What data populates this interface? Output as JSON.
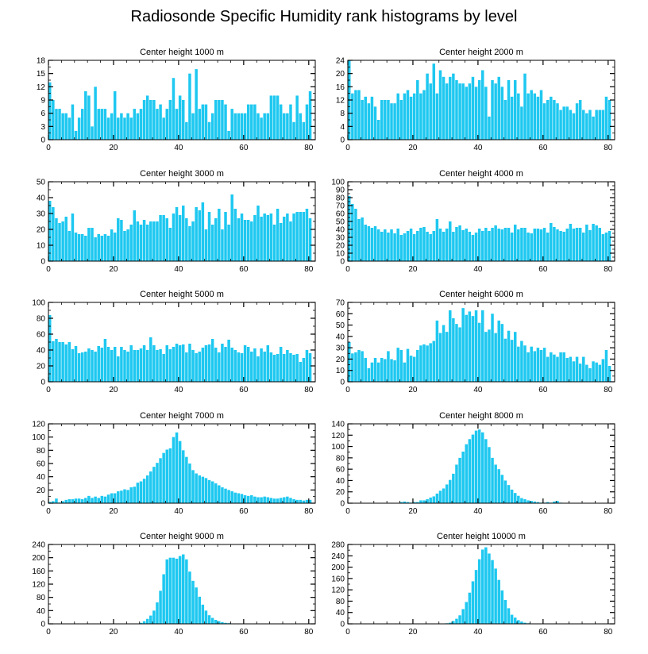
{
  "figure": {
    "title": "Radiosonde Specific Humidity rank histograms by level"
  },
  "colors": {
    "bar": "#1ec8f0",
    "bar_edge": "#ffffff",
    "axis": "#000000"
  },
  "chart_data": [
    {
      "type": "bar",
      "title": "Center height 1000 m",
      "xlim": [
        0,
        82
      ],
      "ylim": [
        0,
        18
      ],
      "xticks": [
        0,
        20,
        40,
        60,
        80
      ],
      "yticks": [
        0,
        3,
        6,
        9,
        12,
        15,
        18
      ],
      "values": [
        13,
        9,
        7,
        7,
        6,
        6,
        5,
        8,
        2,
        5,
        7,
        11,
        10,
        3,
        12,
        7,
        7,
        7,
        5,
        6,
        11,
        5,
        6,
        5,
        6,
        5,
        7,
        6,
        7,
        9,
        10,
        9,
        9,
        7,
        8,
        5,
        7,
        9,
        14,
        7,
        10,
        9,
        4,
        15,
        6,
        16,
        7,
        8,
        8,
        4,
        6,
        9,
        9,
        9,
        8,
        2,
        7,
        6,
        6,
        6,
        6,
        8,
        8,
        8,
        6,
        5,
        6,
        6,
        10,
        10,
        10,
        8,
        6,
        6,
        8,
        4,
        10,
        6,
        4,
        8,
        11
      ]
    },
    {
      "type": "bar",
      "title": "Center height 2000 m",
      "xlim": [
        0,
        82
      ],
      "ylim": [
        0,
        24
      ],
      "xticks": [
        0,
        20,
        40,
        60,
        80
      ],
      "yticks": [
        0,
        4,
        8,
        12,
        16,
        20,
        24
      ],
      "values": [
        24,
        14,
        15,
        15,
        12,
        13,
        11,
        13,
        10,
        6,
        12,
        12,
        12,
        11,
        11,
        14,
        12,
        14,
        15,
        13,
        14,
        18,
        14,
        15,
        20,
        17,
        23,
        14,
        21,
        19,
        17,
        19,
        20,
        18,
        17,
        17,
        16,
        17,
        19,
        16,
        18,
        21,
        16,
        7,
        18,
        17,
        19,
        16,
        12,
        18,
        13,
        18,
        14,
        10,
        20,
        14,
        15,
        14,
        13,
        15,
        11,
        12,
        13,
        12,
        11,
        9,
        10,
        10,
        9,
        8,
        11,
        12,
        9,
        8,
        9,
        7,
        9,
        9,
        9,
        13,
        12
      ]
    },
    {
      "type": "bar",
      "title": "Center height 3000 m",
      "xlim": [
        0,
        82
      ],
      "ylim": [
        0,
        50
      ],
      "xticks": [
        0,
        20,
        40,
        60,
        80
      ],
      "yticks": [
        0,
        10,
        20,
        30,
        40,
        50
      ],
      "values": [
        38,
        34,
        27,
        24,
        25,
        28,
        19,
        30,
        18,
        17,
        17,
        16,
        21,
        21,
        15,
        17,
        16,
        17,
        16,
        20,
        18,
        27,
        26,
        19,
        20,
        23,
        32,
        25,
        23,
        26,
        23,
        25,
        25,
        25,
        29,
        29,
        27,
        21,
        30,
        34,
        29,
        35,
        27,
        22,
        25,
        34,
        32,
        37,
        20,
        31,
        23,
        27,
        33,
        20,
        31,
        23,
        42,
        33,
        27,
        30,
        26,
        26,
        25,
        29,
        35,
        28,
        30,
        29,
        30,
        23,
        33,
        24,
        28,
        30,
        25,
        30,
        31,
        31,
        31,
        33,
        27
      ]
    },
    {
      "type": "bar",
      "title": "Center height 4000 m",
      "xlim": [
        0,
        82
      ],
      "ylim": [
        0,
        100
      ],
      "xticks": [
        0,
        20,
        40,
        60,
        80
      ],
      "yticks": [
        0,
        10,
        20,
        30,
        40,
        50,
        60,
        70,
        80,
        90,
        100
      ],
      "values": [
        82,
        72,
        66,
        53,
        55,
        46,
        44,
        42,
        44,
        40,
        37,
        40,
        36,
        40,
        35,
        41,
        33,
        35,
        38,
        41,
        34,
        38,
        42,
        43,
        37,
        34,
        38,
        53,
        41,
        37,
        41,
        50,
        37,
        43,
        45,
        39,
        41,
        37,
        33,
        36,
        41,
        38,
        42,
        38,
        42,
        45,
        41,
        40,
        42,
        42,
        36,
        46,
        40,
        42,
        42,
        36,
        35,
        41,
        41,
        40,
        42,
        36,
        48,
        43,
        40,
        38,
        37,
        41,
        47,
        41,
        42,
        42,
        36,
        46,
        39,
        47,
        45,
        42,
        34,
        36,
        38
      ]
    },
    {
      "type": "bar",
      "title": "Center height 5000 m",
      "xlim": [
        0,
        82
      ],
      "ylim": [
        0,
        100
      ],
      "xticks": [
        0,
        20,
        40,
        60,
        80
      ],
      "yticks": [
        0,
        20,
        40,
        60,
        80,
        100
      ],
      "values": [
        84,
        51,
        54,
        50,
        50,
        47,
        50,
        41,
        45,
        36,
        37,
        38,
        42,
        40,
        38,
        45,
        43,
        54,
        44,
        40,
        44,
        32,
        44,
        40,
        38,
        46,
        40,
        40,
        42,
        46,
        40,
        56,
        46,
        40,
        41,
        35,
        46,
        41,
        44,
        48,
        46,
        47,
        37,
        48,
        40,
        36,
        38,
        43,
        46,
        47,
        54,
        43,
        37,
        48,
        44,
        53,
        43,
        40,
        37,
        36,
        46,
        44,
        38,
        42,
        32,
        42,
        38,
        46,
        37,
        34,
        35,
        44,
        35,
        40,
        36,
        34,
        35,
        25,
        30,
        40,
        36
      ]
    },
    {
      "type": "bar",
      "title": "Center height 6000 m",
      "xlim": [
        0,
        82
      ],
      "ylim": [
        0,
        70
      ],
      "xticks": [
        0,
        20,
        40,
        60,
        80
      ],
      "yticks": [
        0,
        10,
        20,
        30,
        40,
        50,
        60,
        70
      ],
      "values": [
        35,
        25,
        26,
        28,
        27,
        21,
        12,
        17,
        21,
        17,
        21,
        20,
        27,
        20,
        19,
        30,
        28,
        17,
        29,
        23,
        22,
        28,
        32,
        33,
        32,
        34,
        36,
        54,
        43,
        50,
        44,
        63,
        56,
        51,
        48,
        65,
        59,
        62,
        58,
        63,
        52,
        63,
        44,
        46,
        60,
        43,
        54,
        51,
        38,
        45,
        37,
        44,
        31,
        36,
        32,
        26,
        31,
        27,
        30,
        28,
        30,
        22,
        26,
        24,
        22,
        26,
        26,
        21,
        22,
        18,
        22,
        16,
        22,
        15,
        12,
        18,
        17,
        15,
        20,
        28,
        14
      ]
    },
    {
      "type": "bar",
      "title": "Center height 7000 m",
      "xlim": [
        0,
        82
      ],
      "ylim": [
        0,
        120
      ],
      "xticks": [
        0,
        20,
        40,
        60,
        80
      ],
      "yticks": [
        0,
        20,
        40,
        60,
        80,
        100,
        120
      ],
      "values": [
        2,
        3,
        7,
        1,
        3,
        5,
        6,
        6,
        7,
        7,
        6,
        8,
        11,
        8,
        10,
        8,
        11,
        10,
        13,
        15,
        15,
        18,
        19,
        21,
        20,
        24,
        25,
        31,
        33,
        37,
        42,
        48,
        55,
        61,
        68,
        76,
        81,
        83,
        100,
        107,
        94,
        80,
        70,
        60,
        50,
        45,
        42,
        40,
        38,
        35,
        33,
        30,
        27,
        24,
        22,
        20,
        18,
        16,
        15,
        14,
        12,
        11,
        12,
        10,
        9,
        9,
        10,
        9,
        8,
        7,
        7,
        8,
        9,
        10,
        8,
        6,
        5,
        5,
        4,
        5,
        5
      ]
    },
    {
      "type": "bar",
      "title": "Center height 8000 m",
      "xlim": [
        0,
        82
      ],
      "ylim": [
        0,
        140
      ],
      "xticks": [
        0,
        20,
        40,
        60,
        80
      ],
      "yticks": [
        0,
        20,
        40,
        60,
        80,
        100,
        120,
        140
      ],
      "values": [
        0,
        0,
        0,
        0,
        0,
        0,
        0,
        0,
        0,
        0,
        0,
        0,
        0,
        0,
        0,
        0,
        2,
        3,
        2,
        1,
        2,
        2,
        5,
        5,
        7,
        10,
        12,
        17,
        22,
        26,
        33,
        41,
        52,
        68,
        80,
        91,
        104,
        113,
        121,
        128,
        130,
        125,
        113,
        99,
        80,
        68,
        60,
        50,
        40,
        32,
        24,
        18,
        13,
        9,
        7,
        5,
        4,
        3,
        2,
        1,
        1,
        2,
        1,
        3,
        4,
        1,
        0,
        0,
        0,
        0,
        0,
        0,
        0,
        0,
        0,
        0,
        0,
        0,
        0,
        0,
        0
      ]
    },
    {
      "type": "bar",
      "title": "Center height 9000 m",
      "xlim": [
        0,
        82
      ],
      "ylim": [
        0,
        240
      ],
      "xticks": [
        0,
        20,
        40,
        60,
        80
      ],
      "yticks": [
        0,
        40,
        80,
        120,
        160,
        200,
        240
      ],
      "values": [
        0,
        0,
        0,
        0,
        0,
        0,
        0,
        0,
        0,
        0,
        0,
        0,
        0,
        0,
        0,
        0,
        0,
        0,
        0,
        0,
        0,
        0,
        0,
        0,
        0,
        0,
        0,
        0,
        3,
        8,
        15,
        25,
        40,
        65,
        100,
        150,
        195,
        200,
        200,
        197,
        205,
        210,
        195,
        158,
        130,
        110,
        82,
        58,
        40,
        26,
        18,
        12,
        8,
        5,
        3,
        2,
        1,
        0,
        0,
        0,
        0,
        0,
        0,
        0,
        0,
        0,
        0,
        0,
        0,
        0,
        0,
        0,
        0,
        0,
        0,
        0,
        0,
        0,
        0,
        0,
        0
      ]
    },
    {
      "type": "bar",
      "title": "Center height 10000 m",
      "xlim": [
        0,
        82
      ],
      "ylim": [
        0,
        280
      ],
      "xticks": [
        0,
        20,
        40,
        60,
        80
      ],
      "yticks": [
        0,
        40,
        80,
        120,
        160,
        200,
        240,
        280
      ],
      "yticklabels": [
        0,
        40,
        80,
        120,
        160,
        200,
        240,
        280
      ],
      "values": [
        0,
        0,
        0,
        0,
        0,
        0,
        0,
        0,
        0,
        0,
        0,
        0,
        0,
        0,
        0,
        0,
        0,
        0,
        0,
        0,
        0,
        0,
        0,
        0,
        0,
        0,
        0,
        0,
        0,
        1,
        2,
        4,
        10,
        18,
        30,
        52,
        77,
        110,
        150,
        190,
        228,
        262,
        270,
        248,
        225,
        195,
        155,
        118,
        84,
        55,
        32,
        22,
        13,
        8,
        4,
        2,
        1,
        0,
        0,
        0,
        0,
        0,
        0,
        0,
        0,
        0,
        0,
        0,
        0,
        0,
        0,
        0,
        0,
        0,
        0,
        0,
        0,
        0,
        0,
        0,
        0
      ]
    }
  ]
}
